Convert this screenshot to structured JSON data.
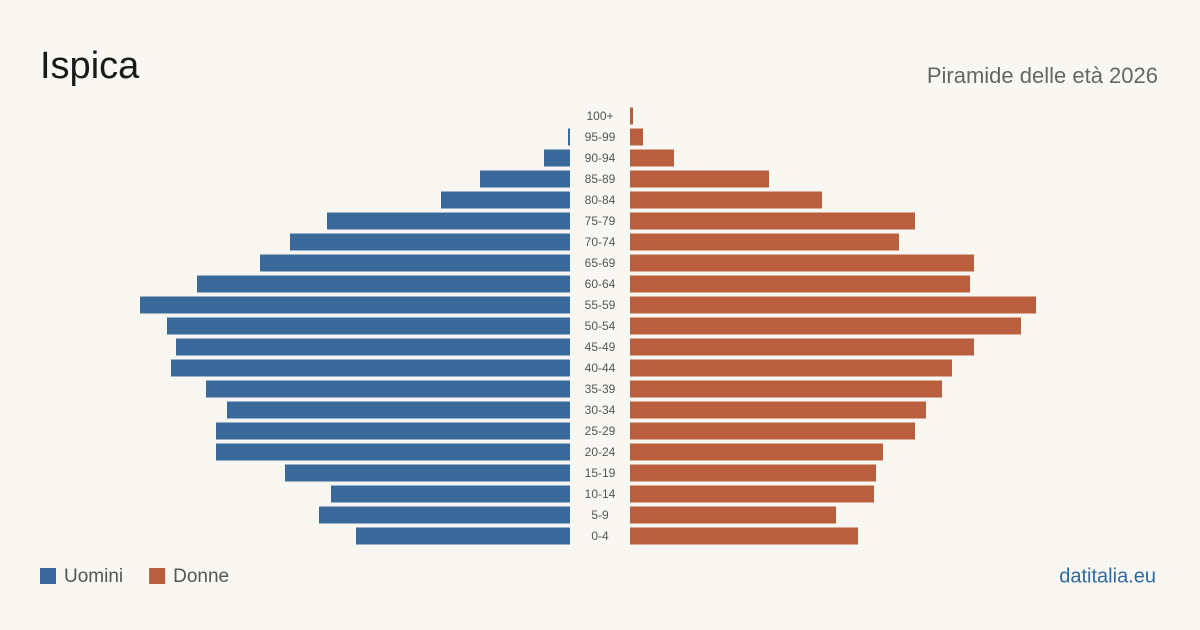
{
  "chart_data": {
    "type": "pyramid",
    "title": "Ispica",
    "subtitle": "Piramide delle età 2026",
    "source": "datitalia.eu",
    "categories": [
      "100+",
      "95-99",
      "90-94",
      "85-89",
      "80-84",
      "75-79",
      "70-74",
      "65-69",
      "60-64",
      "55-59",
      "50-54",
      "45-49",
      "40-44",
      "35-39",
      "30-34",
      "25-29",
      "20-24",
      "15-19",
      "10-14",
      "5-9",
      "0-4"
    ],
    "xlim": [
      0,
      440
    ],
    "series": [
      {
        "name": "Uomini",
        "color": "#3a6a9b",
        "values": [
          0,
          2,
          26,
          90,
          129,
          243,
          280,
          310,
          373,
          430,
          403,
          394,
          399,
          364,
          343,
          354,
          354,
          285,
          239,
          251,
          214
        ]
      },
      {
        "name": "Donne",
        "color": "#b95f3e",
        "values": [
          3,
          13,
          44,
          139,
          192,
          285,
          269,
          344,
          340,
          406,
          391,
          344,
          322,
          312,
          296,
          285,
          253,
          246,
          244,
          206,
          228
        ]
      }
    ]
  }
}
